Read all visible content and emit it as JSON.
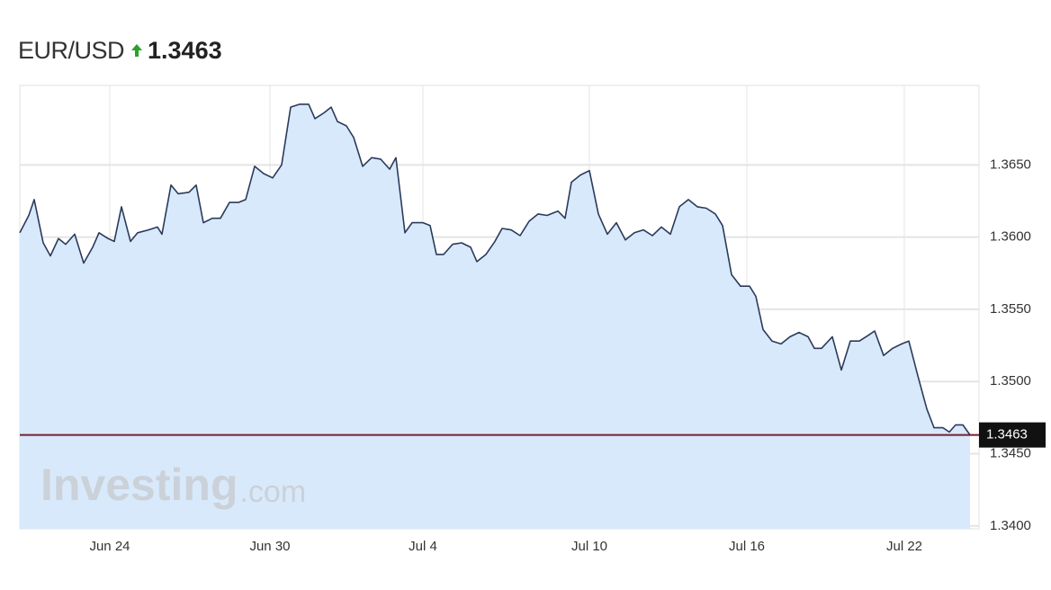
{
  "chart_data": {
    "type": "area",
    "title": "EUR/USD",
    "last_price": 1.3463,
    "watermark": "Investing",
    "watermark_suffix": ".com",
    "line_color": "#2b3a5c",
    "fill_color": "#d8e9fb",
    "price_line_color": "#7a1f2b",
    "grid": true,
    "x": [
      0,
      1,
      1.6,
      2.6,
      3.4,
      4.3,
      5.1,
      6.1,
      7.1,
      8.1,
      8.8,
      9.8,
      10.5,
      11.3,
      12.3,
      13.1,
      14.3,
      15.3,
      15.8,
      16.8,
      17.6,
      18.8,
      19.6,
      20.4,
      21.4,
      22.3,
      23.3,
      24.3,
      25.1,
      26.1,
      27.1,
      28.1,
      29.1,
      30.1,
      31.1,
      32.1,
      32.8,
      33.8,
      34.6,
      35.3,
      36.3,
      37.1,
      38.1,
      39.1,
      40.1,
      41.1,
      41.8,
      42.8,
      43.6,
      44.8,
      45.6,
      46.3,
      47.1,
      48.1,
      49.1,
      50.1,
      50.8,
      51.8,
      52.8,
      53.6,
      54.6,
      55.6,
      56.6,
      57.6,
      58.6,
      59.8,
      60.6,
      61.3,
      62.3,
      63.3,
      64.3,
      65.3,
      66.3,
      67.3,
      68.3,
      69.3,
      70.3,
      71.3,
      72.3,
      73.3,
      74.3,
      75.3,
      76.3,
      77.3,
      78.1,
      79.1,
      80.1,
      81.1,
      81.8,
      82.6,
      83.6,
      84.6,
      85.6,
      86.6,
      87.6,
      88.3,
      89.1,
      90.3,
      91.3,
      92.3,
      93.3,
      94.3,
      95,
      96,
      97,
      98,
      98.8,
      99.8,
      100.8,
      101.6,
      102.6,
      103.3,
      104,
      104.8,
      105.6
    ],
    "values": [
      1.3603,
      1.3615,
      1.3626,
      1.3596,
      1.3587,
      1.3599,
      1.3595,
      1.3602,
      1.3582,
      1.3593,
      1.3603,
      1.3599,
      1.3597,
      1.3621,
      1.3597,
      1.3603,
      1.3605,
      1.3607,
      1.3602,
      1.3636,
      1.363,
      1.3631,
      1.3636,
      1.361,
      1.3613,
      1.3613,
      1.3624,
      1.3624,
      1.3626,
      1.3649,
      1.3644,
      1.3641,
      1.365,
      1.369,
      1.3692,
      1.3692,
      1.3682,
      1.3686,
      1.369,
      1.368,
      1.3677,
      1.3669,
      1.3649,
      1.3655,
      1.3654,
      1.3647,
      1.3655,
      1.3603,
      1.361,
      1.361,
      1.3608,
      1.3588,
      1.3588,
      1.3595,
      1.3596,
      1.3593,
      1.3583,
      1.3588,
      1.3597,
      1.3606,
      1.3605,
      1.3601,
      1.3611,
      1.3616,
      1.3615,
      1.3618,
      1.3613,
      1.3638,
      1.3643,
      1.3646,
      1.3616,
      1.3602,
      1.361,
      1.3598,
      1.3603,
      1.3605,
      1.3601,
      1.3607,
      1.3602,
      1.3621,
      1.3626,
      1.3621,
      1.362,
      1.3616,
      1.3608,
      1.3574,
      1.3566,
      1.3566,
      1.3559,
      1.3536,
      1.3528,
      1.3526,
      1.3531,
      1.3534,
      1.3531,
      1.3523,
      1.3523,
      1.3531,
      1.3508,
      1.3528,
      1.3528,
      1.3532,
      1.3535,
      1.3518,
      1.3523,
      1.3526,
      1.3528,
      1.3504,
      1.3481,
      1.3468,
      1.3468,
      1.3465,
      1.347,
      1.347,
      1.3463
    ],
    "xlim": [
      0,
      106.6
    ],
    "xticks": [
      {
        "value": 10,
        "label": "Jun 24"
      },
      {
        "value": 27.8,
        "label": "Jun 30"
      },
      {
        "value": 44.8,
        "label": "Jul 4"
      },
      {
        "value": 63.3,
        "label": "Jul 10"
      },
      {
        "value": 80.8,
        "label": "Jul 16"
      },
      {
        "value": 98.3,
        "label": "Jul 22"
      }
    ],
    "ylim": [
      1.3398,
      1.3705
    ],
    "yticks": [
      {
        "value": 1.34,
        "label": "1.3400"
      },
      {
        "value": 1.345,
        "label": "1.3450"
      },
      {
        "value": 1.35,
        "label": "1.3500"
      },
      {
        "value": 1.355,
        "label": "1.3550"
      },
      {
        "value": 1.36,
        "label": "1.3600"
      },
      {
        "value": 1.365,
        "label": "1.3650"
      }
    ]
  }
}
